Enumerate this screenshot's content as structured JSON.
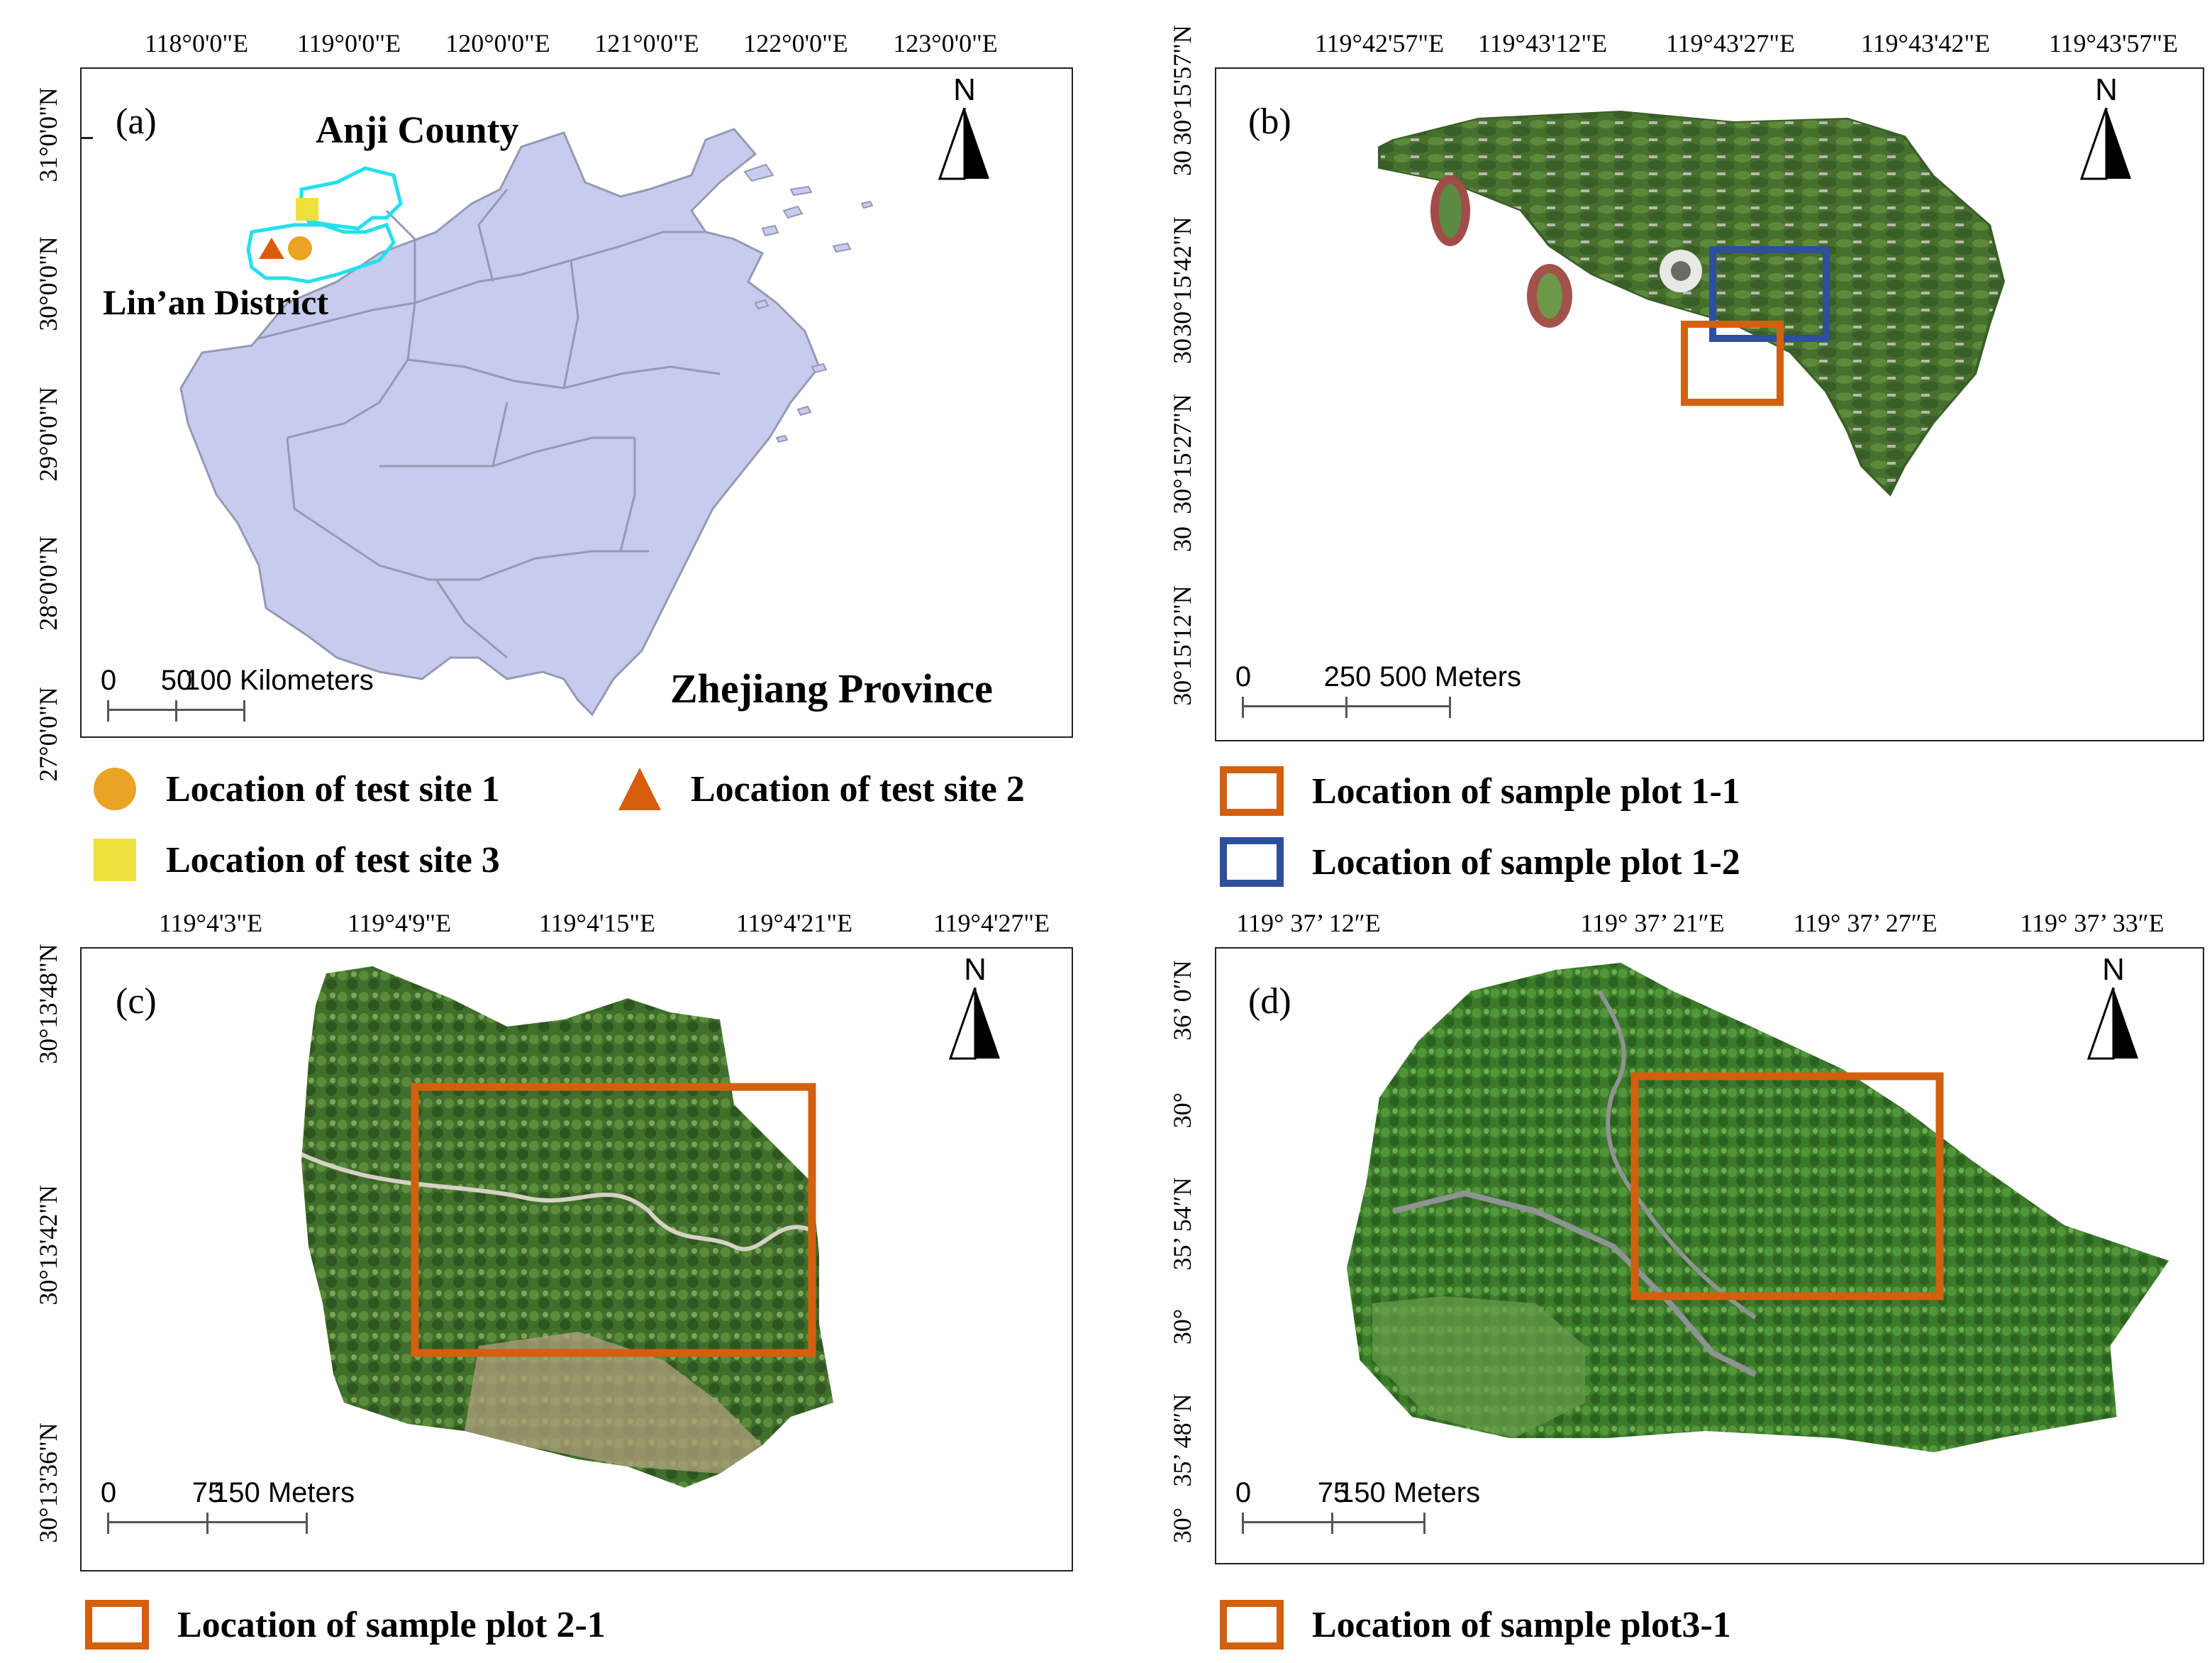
{
  "panel_a": {
    "label": "(a)",
    "x_ticks": [
      "118°0'0\"E",
      "119°0'0\"E",
      "120°0'0\"E",
      "121°0'0\"E",
      "122°0'0\"E",
      "123°0'0\"E"
    ],
    "y_ticks": [
      "31°0'0\"N",
      "30°0'0\"N",
      "29°0'0\"N",
      "28°0'0\"N",
      "27°0'0\"N"
    ],
    "place_anji": "Anji County",
    "place_linan": "Lin’an District",
    "province": "Zhejiang Province",
    "north": "N",
    "scale": {
      "z": "0",
      "m": "50",
      "e": "100 Kilometers"
    },
    "colors": {
      "province_fill": "#c7cbee",
      "border": "#9599b3",
      "highlight": "#22e0ee",
      "site1": "#eaa325",
      "site2": "#d85d0b",
      "site3": "#ede13b"
    }
  },
  "panel_b": {
    "label": "(b)",
    "x_ticks": [
      "119°42'57\"E",
      "119°43'12\"E",
      "119°43'27\"E",
      "119°43'42\"E",
      "119°43'57\"E"
    ],
    "y_ticks": [
      "30°15'57\"N",
      "30",
      "30°15'42\"N",
      "30",
      "30°15'27\"N",
      "30",
      "30°15'12\"N"
    ],
    "north": "N",
    "scale": {
      "z": "0",
      "m": "250",
      "e": "500 Meters"
    }
  },
  "panel_c": {
    "label": "(c)",
    "x_ticks": [
      "119°4'3\"E",
      "119°4'9\"E",
      "119°4'15\"E",
      "119°4'21\"E",
      "119°4'27\"E"
    ],
    "y_ticks": [
      "30°13'48\"N",
      "30°13'42\"N",
      "30°13'36\"N"
    ],
    "north": "N",
    "scale": {
      "z": "0",
      "m": "75",
      "e": "150 Meters"
    }
  },
  "panel_d": {
    "label": "(d)",
    "x_ticks": [
      "119°  37’ 12″E",
      "119°  37’ 21″E",
      "119°  37’ 27″E",
      "119°  37’ 33″E"
    ],
    "y_ticks": [
      "36’ 0″N",
      "30°",
      "35’ 54″N",
      "30°",
      "35’ 48″N",
      "30°"
    ],
    "north": "N",
    "scale": {
      "z": "0",
      "m": "75",
      "e": "150 Meters"
    }
  },
  "legend": {
    "site1": "Location of test site 1",
    "site2": "Location of test site 2",
    "site3": "Location of test site 3",
    "plot11": "Location of sample plot 1-1",
    "plot12": "Location of sample plot 1-2",
    "plot21": "Location of sample plot 2-1",
    "plot31": "Location of sample plot3-1",
    "colors": {
      "orange_box": "#d2600e",
      "blue_box": "#2e4f9a"
    }
  }
}
